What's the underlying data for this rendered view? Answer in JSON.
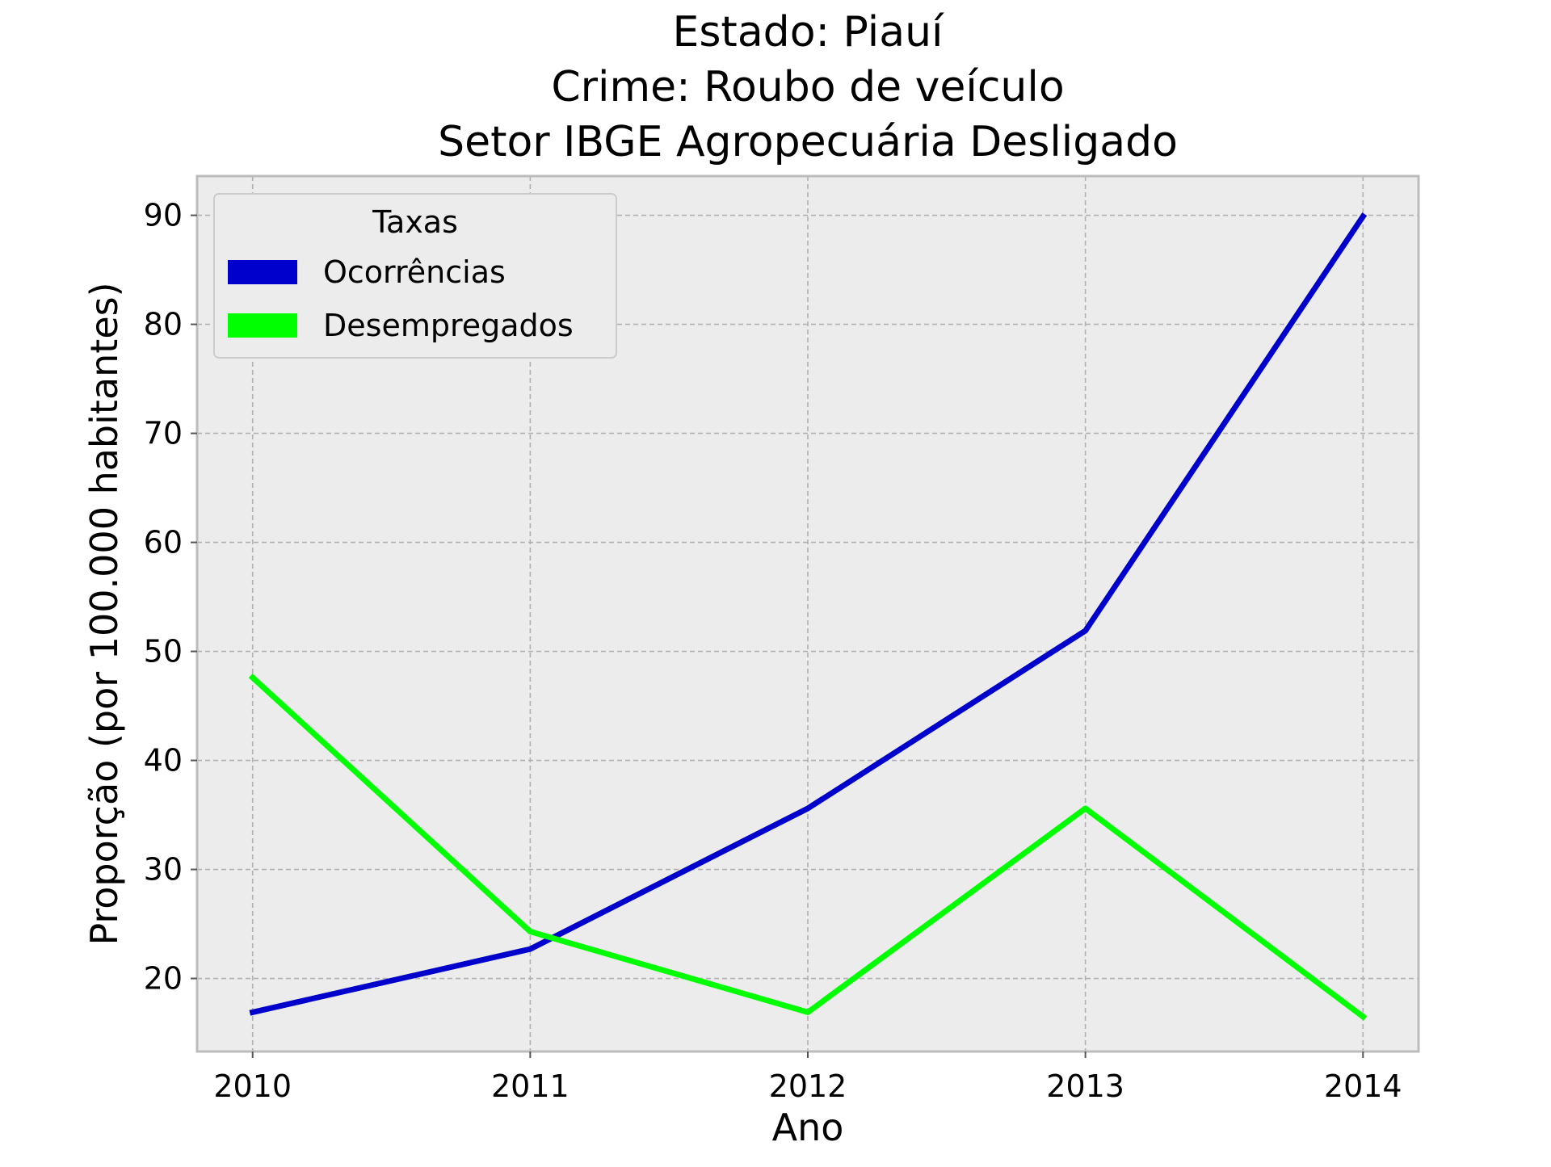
{
  "chart_data": {
    "type": "line",
    "title": [
      "Estado: Piauí",
      "Crime: Roubo de veículo",
      "Setor IBGE  Agropecuária   Desligado"
    ],
    "xlabel": "Ano",
    "ylabel": "Proporção (por 100.000 habitantes)",
    "x": [
      2010,
      2011,
      2012,
      2013,
      2014
    ],
    "x_tick_labels": [
      "2010",
      "2011",
      "2012",
      "2013",
      "2014"
    ],
    "y_ticks": [
      20,
      30,
      40,
      50,
      60,
      70,
      80,
      90
    ],
    "y_tick_labels": [
      "20",
      "30",
      "40",
      "50",
      "60",
      "70",
      "80",
      "90"
    ],
    "xlim": [
      2009.8,
      2014.2
    ],
    "ylim": [
      13.3,
      93.6
    ],
    "grid": true,
    "legend": {
      "title": "Taxas",
      "position": "upper-left"
    },
    "series": [
      {
        "name": "Ocorrências",
        "color": "#0000cc",
        "values": [
          16.9,
          22.7,
          35.6,
          51.9,
          89.9
        ]
      },
      {
        "name": "Desempregados",
        "color": "#00ff00",
        "values": [
          47.6,
          24.3,
          16.9,
          35.6,
          16.5
        ]
      }
    ],
    "colors": {
      "plot_background": "#ececec",
      "grid": "#b0b0b0",
      "frame": "#bcbcbc"
    }
  }
}
